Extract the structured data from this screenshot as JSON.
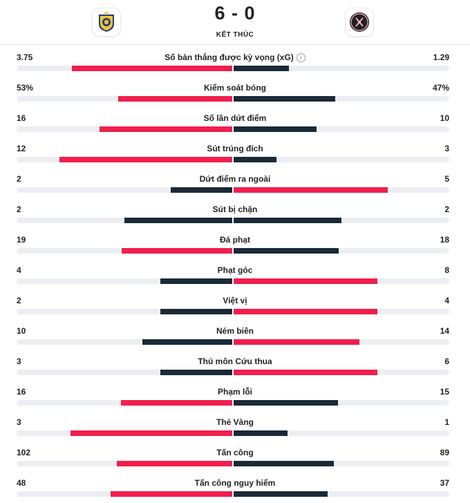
{
  "match": {
    "score": "6 - 0",
    "status": "KẾT THÚC",
    "home_logo_icon": "al-nassr-crest-icon",
    "away_logo_icon": "inter-miami-crest-icon"
  },
  "colors": {
    "winner": "#f11e4c",
    "loser": "#1a2a36",
    "track": "#eceef1"
  },
  "stats": [
    {
      "label": "Số bàn thắng được kỳ vọng (xG)",
      "home": "3.75",
      "away": "1.29",
      "info": true,
      "home_frac": 0.744,
      "away_frac": 0.256
    },
    {
      "label": "Kiểm soát bóng",
      "home": "53%",
      "away": "47%",
      "info": false,
      "home_frac": 0.53,
      "away_frac": 0.47
    },
    {
      "label": "Số lần dứt điểm",
      "home": "16",
      "away": "10",
      "info": false,
      "home_frac": 0.615,
      "away_frac": 0.385
    },
    {
      "label": "Sút trúng đích",
      "home": "12",
      "away": "3",
      "info": false,
      "home_frac": 0.8,
      "away_frac": 0.2
    },
    {
      "label": "Dứt điểm ra ngoài",
      "home": "2",
      "away": "5",
      "info": false,
      "home_frac": 0.286,
      "away_frac": 0.714
    },
    {
      "label": "Sút bị chặn",
      "home": "2",
      "away": "2",
      "info": false,
      "home_frac": 0.5,
      "away_frac": 0.5
    },
    {
      "label": "Đá phạt",
      "home": "19",
      "away": "18",
      "info": false,
      "home_frac": 0.514,
      "away_frac": 0.486
    },
    {
      "label": "Phạt góc",
      "home": "4",
      "away": "8",
      "info": false,
      "home_frac": 0.333,
      "away_frac": 0.667
    },
    {
      "label": "Việt vị",
      "home": "2",
      "away": "4",
      "info": false,
      "home_frac": 0.333,
      "away_frac": 0.667
    },
    {
      "label": "Ném biên",
      "home": "10",
      "away": "14",
      "info": false,
      "home_frac": 0.417,
      "away_frac": 0.583
    },
    {
      "label": "Thủ môn Cứu thua",
      "home": "3",
      "away": "6",
      "info": false,
      "home_frac": 0.333,
      "away_frac": 0.667
    },
    {
      "label": "Phạm lỗi",
      "home": "16",
      "away": "15",
      "info": false,
      "home_frac": 0.516,
      "away_frac": 0.484
    },
    {
      "label": "Thẻ Vàng",
      "home": "3",
      "away": "1",
      "info": false,
      "home_frac": 0.75,
      "away_frac": 0.25
    },
    {
      "label": "Tấn công",
      "home": "102",
      "away": "89",
      "info": false,
      "home_frac": 0.534,
      "away_frac": 0.466
    },
    {
      "label": "Tấn công nguy hiểm",
      "home": "48",
      "away": "37",
      "info": false,
      "home_frac": 0.565,
      "away_frac": 0.435
    }
  ]
}
